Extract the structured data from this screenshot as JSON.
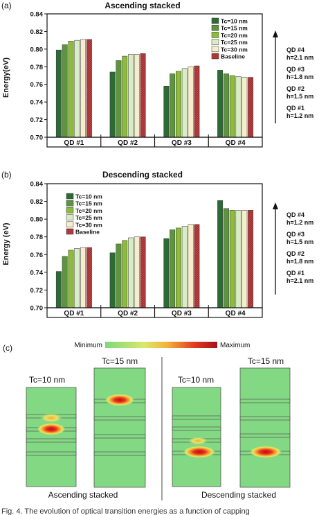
{
  "chart_data": [
    {
      "type": "bar",
      "panel_label": "(a)",
      "title": "Ascending stacked",
      "ylabel": "Energy(eV)",
      "ylim": [
        0.7,
        0.84
      ],
      "yticks": [
        "0.70",
        "0.72",
        "0.74",
        "0.76",
        "0.78",
        "0.80",
        "0.82",
        "0.84"
      ],
      "categories": [
        "QD #1",
        "QD #2",
        "QD #3",
        "QD #4"
      ],
      "legend_position": "top-right",
      "series": [
        {
          "name": "Tc=10 nm",
          "color": "#2e6b34",
          "values": [
            0.799,
            0.774,
            0.758,
            0.776
          ]
        },
        {
          "name": "Tc=15 nm",
          "color": "#5e9340",
          "values": [
            0.805,
            0.787,
            0.772,
            0.772
          ]
        },
        {
          "name": "Tc=20 nm",
          "color": "#8dbb3a",
          "values": [
            0.809,
            0.792,
            0.775,
            0.77
          ]
        },
        {
          "name": "Tc=25 nm",
          "color": "#d9ecc6",
          "values": [
            0.81,
            0.794,
            0.778,
            0.769
          ]
        },
        {
          "name": "Tc=30 nm",
          "color": "#f6edcc",
          "values": [
            0.811,
            0.794,
            0.78,
            0.768
          ]
        },
        {
          "name": "Baseline",
          "color": "#c84a4a",
          "values": [
            0.811,
            0.795,
            0.781,
            0.768
          ]
        }
      ],
      "side_labels": [
        {
          "qd": "QD #4",
          "h": "h=2.1 nm"
        },
        {
          "qd": "QD #3",
          "h": "h=1.8 nm"
        },
        {
          "qd": "QD #2",
          "h": "h=1.5 nm"
        },
        {
          "qd": "QD #1",
          "h": "h=1.2 nm"
        }
      ]
    },
    {
      "type": "bar",
      "panel_label": "(b)",
      "title": "Descending stacked",
      "ylabel": "Energy (eV)",
      "ylim": [
        0.7,
        0.84
      ],
      "yticks": [
        "0.70",
        "0.72",
        "0.74",
        "0.76",
        "0.78",
        "0.80",
        "0.82",
        "0.84"
      ],
      "categories": [
        "QD #1",
        "QD #2",
        "QD #3",
        "QD #4"
      ],
      "legend_position": "top-left",
      "series": [
        {
          "name": "Tc=10 nm",
          "color": "#2e6b34",
          "values": [
            0.741,
            0.762,
            0.778,
            0.821
          ]
        },
        {
          "name": "Tc=15 nm",
          "color": "#5e9340",
          "values": [
            0.758,
            0.772,
            0.788,
            0.812
          ]
        },
        {
          "name": "Tc=20 nm",
          "color": "#8dbb3a",
          "values": [
            0.765,
            0.776,
            0.79,
            0.81
          ]
        },
        {
          "name": "Tc=25 nm",
          "color": "#d9ecc6",
          "values": [
            0.767,
            0.779,
            0.792,
            0.81
          ]
        },
        {
          "name": "Tc=30 nm",
          "color": "#f6edcc",
          "values": [
            0.768,
            0.78,
            0.794,
            0.81
          ]
        },
        {
          "name": "Baseline",
          "color": "#c84a4a",
          "values": [
            0.768,
            0.78,
            0.794,
            0.81
          ]
        }
      ],
      "side_labels": [
        {
          "qd": "QD #4",
          "h": "h=1.2 nm"
        },
        {
          "qd": "QD #3",
          "h": "h=1.5 nm"
        },
        {
          "qd": "QD #2",
          "h": "h=1.8 nm"
        },
        {
          "qd": "QD #1",
          "h": "h=2.1 nm"
        }
      ]
    }
  ],
  "panel_c": {
    "label": "(c)",
    "colorbar_min": "Minimum",
    "colorbar_max": "Maximum",
    "ascending_caption": "Ascending stacked",
    "descending_caption": "Descending stacked",
    "ascending_tc10": "Tc=10 nm",
    "ascending_tc15": "Tc=15 nm",
    "descending_tc10": "Tc=10 nm",
    "descending_tc15": "Tc=15 nm"
  },
  "caption": "Fig. 4.   The evolution of optical transition energies as a function of capping"
}
